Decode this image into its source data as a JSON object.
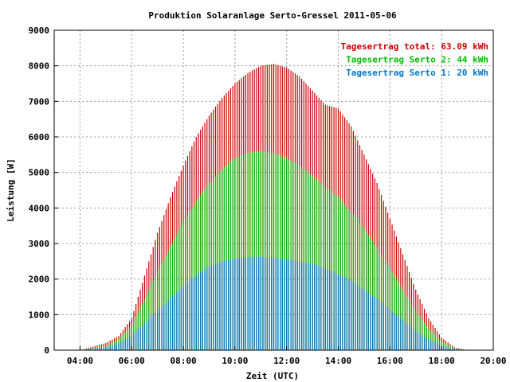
{
  "chart_data": {
    "type": "bar",
    "title": "Produktion Solaranlage Serto-Gressel 2011-05-06",
    "xlabel": "Zeit (UTC)",
    "ylabel": "Leistung [W]",
    "xlim": [
      3.0,
      20.0
    ],
    "ylim": [
      0,
      9000
    ],
    "x_ticks": [
      "04:00",
      "06:00",
      "08:00",
      "10:00",
      "12:00",
      "14:00",
      "16:00",
      "18:00",
      "20:00"
    ],
    "y_ticks": [
      "0",
      "1000",
      "2000",
      "3000",
      "4000",
      "5000",
      "6000",
      "7000",
      "8000",
      "9000"
    ],
    "grid": true,
    "legend_position": "top-right",
    "bar_interval_hours": 0.08333,
    "series": [
      {
        "name": "Tagesertrag total: 63.09 kWh",
        "color": "#cc0000",
        "x": [
          4.0,
          5.0,
          5.5,
          6.0,
          6.5,
          7.0,
          7.5,
          8.0,
          8.5,
          9.0,
          9.5,
          10.0,
          10.5,
          11.0,
          11.5,
          12.0,
          12.5,
          13.0,
          13.5,
          14.0,
          14.5,
          15.0,
          15.5,
          16.0,
          16.5,
          17.0,
          17.5,
          18.0,
          18.5,
          19.0
        ],
        "values": [
          0,
          200,
          400,
          900,
          2100,
          3300,
          4300,
          5200,
          6000,
          6600,
          7100,
          7500,
          7800,
          8000,
          8050,
          7950,
          7700,
          7300,
          6900,
          6800,
          6300,
          5500,
          4700,
          3700,
          2700,
          1700,
          900,
          350,
          80,
          0
        ]
      },
      {
        "name": "Tagesertrag Serto 2: 44 kWh",
        "color": "#00bb00",
        "x": [
          4.0,
          5.0,
          5.5,
          6.0,
          6.5,
          7.0,
          7.5,
          8.0,
          8.5,
          9.0,
          9.5,
          10.0,
          10.5,
          11.0,
          11.5,
          12.0,
          12.5,
          13.0,
          13.5,
          14.0,
          14.5,
          15.0,
          15.5,
          16.0,
          16.5,
          17.0,
          17.5,
          18.0,
          18.5,
          19.0
        ],
        "values": [
          0,
          120,
          300,
          700,
          1400,
          2200,
          2900,
          3600,
          4200,
          4700,
          5100,
          5400,
          5550,
          5600,
          5550,
          5400,
          5200,
          4900,
          4600,
          4300,
          3900,
          3400,
          2900,
          2300,
          1700,
          1100,
          600,
          250,
          60,
          0
        ]
      },
      {
        "name": "Tagesertrag Serto 1: 20 kWh",
        "color": "#0077cc",
        "x": [
          4.0,
          5.0,
          5.5,
          6.0,
          6.5,
          7.0,
          7.5,
          8.0,
          8.5,
          9.0,
          9.5,
          10.0,
          10.5,
          11.0,
          11.5,
          12.0,
          12.5,
          13.0,
          13.5,
          14.0,
          14.5,
          15.0,
          15.5,
          16.0,
          16.5,
          17.0,
          17.5,
          18.0,
          18.5,
          19.0
        ],
        "values": [
          0,
          80,
          180,
          400,
          750,
          1100,
          1450,
          1800,
          2100,
          2350,
          2500,
          2580,
          2620,
          2620,
          2600,
          2560,
          2500,
          2420,
          2300,
          2150,
          1950,
          1700,
          1450,
          1150,
          850,
          550,
          300,
          120,
          30,
          0
        ]
      }
    ]
  }
}
